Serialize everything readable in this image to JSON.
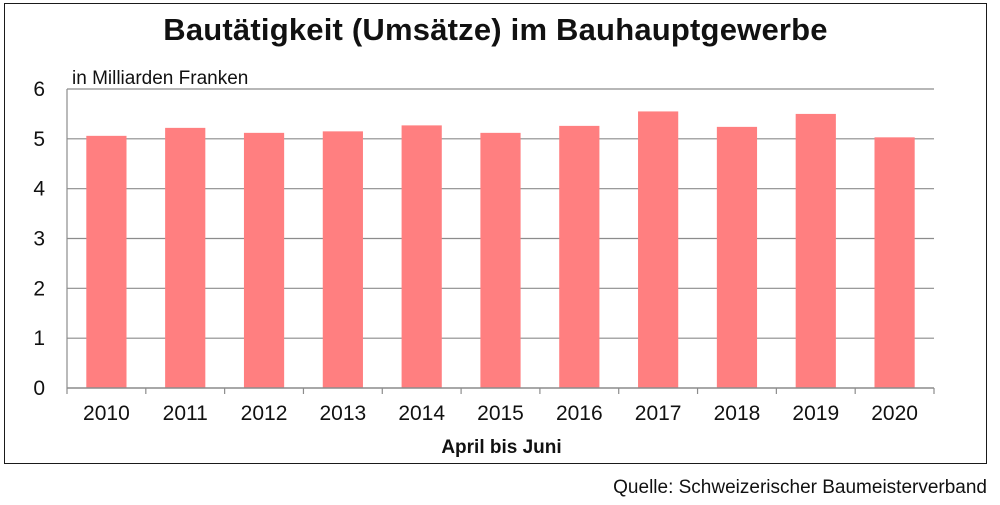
{
  "chart_data": {
    "type": "bar",
    "title": "Bautätigkeit (Umsätze) im Bauhauptgewerbe",
    "unit_label": "in Milliarden Franken",
    "xlabel": "April bis Juni",
    "ylabel": "",
    "categories": [
      "2010",
      "2011",
      "2012",
      "2013",
      "2014",
      "2015",
      "2016",
      "2017",
      "2018",
      "2019",
      "2020"
    ],
    "values": [
      5.06,
      5.22,
      5.12,
      5.15,
      5.27,
      5.12,
      5.26,
      5.55,
      5.24,
      5.5,
      5.03
    ],
    "ylim": [
      0,
      6
    ],
    "yticks": [
      0,
      1,
      2,
      3,
      4,
      5,
      6
    ],
    "grid": true,
    "bar_color": "#ff7f80",
    "source": "Quelle: Schweizerischer Baumeisterverband"
  }
}
